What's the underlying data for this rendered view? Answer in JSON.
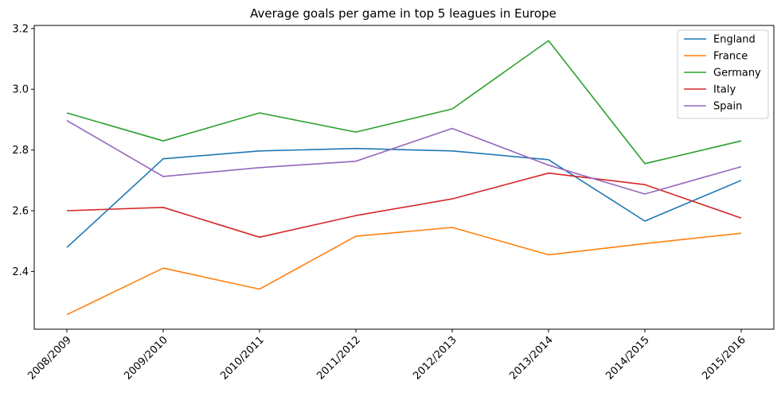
{
  "chart_data": {
    "type": "line",
    "title": "Average goals per game in top 5 leagues in Europe",
    "xlabel": "",
    "ylabel": "",
    "categories": [
      "2008/2009",
      "2009/2010",
      "2010/2011",
      "2011/2012",
      "2012/2013",
      "2013/2014",
      "2014/2015",
      "2015/2016"
    ],
    "ylim": [
      2.21,
      3.21
    ],
    "yticks": [
      2.4,
      2.6,
      2.8,
      3.0,
      3.2
    ],
    "ytick_labels": [
      "2.4",
      "2.6",
      "2.8",
      "3.0",
      "3.2"
    ],
    "grid": false,
    "legend_position": "top-right",
    "series": [
      {
        "name": "England",
        "color": "#1f77b4",
        "values": [
          2.479,
          2.771,
          2.797,
          2.805,
          2.797,
          2.768,
          2.566,
          2.7
        ]
      },
      {
        "name": "France",
        "color": "#ff7f0e",
        "values": [
          2.258,
          2.411,
          2.342,
          2.516,
          2.545,
          2.455,
          2.492,
          2.526
        ]
      },
      {
        "name": "Germany",
        "color": "#2ca02c",
        "values": [
          2.922,
          2.83,
          2.922,
          2.859,
          2.935,
          3.16,
          2.755,
          2.83
        ]
      },
      {
        "name": "Italy",
        "color": "#d62728",
        "values": [
          2.6,
          2.611,
          2.513,
          2.584,
          2.639,
          2.724,
          2.686,
          2.576
        ]
      },
      {
        "name": "Spain",
        "color": "#9467bd",
        "values": [
          2.897,
          2.713,
          2.742,
          2.763,
          2.871,
          2.75,
          2.655,
          2.745
        ]
      }
    ]
  }
}
